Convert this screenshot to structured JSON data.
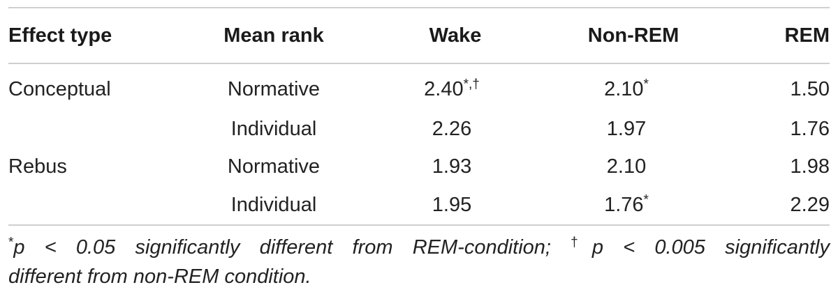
{
  "table": {
    "headers": {
      "effect_type": "Effect type",
      "mean_rank": "Mean rank",
      "wake": "Wake",
      "non_rem": "Non-REM",
      "rem": "REM"
    },
    "rows": [
      {
        "effect_type": "Conceptual",
        "mean_rank": "Normative",
        "wake": "2.40",
        "wake_mark": "*,†",
        "non_rem": "2.10",
        "non_rem_mark": "*",
        "rem": "1.50",
        "rem_mark": ""
      },
      {
        "effect_type": "",
        "mean_rank": "Individual",
        "wake": "2.26",
        "wake_mark": "",
        "non_rem": "1.97",
        "non_rem_mark": "",
        "rem": "1.76",
        "rem_mark": ""
      },
      {
        "effect_type": "Rebus",
        "mean_rank": "Normative",
        "wake": "1.93",
        "wake_mark": "",
        "non_rem": "2.10",
        "non_rem_mark": "",
        "rem": "1.98",
        "rem_mark": ""
      },
      {
        "effect_type": "",
        "mean_rank": "Individual",
        "wake": "1.95",
        "wake_mark": "",
        "non_rem": "1.76",
        "non_rem_mark": "*",
        "rem": "2.29",
        "rem_mark": ""
      }
    ]
  },
  "footnote": {
    "mark1": "*",
    "text1": "p < 0.05 significantly different from REM-condition; ",
    "mark2": "†",
    "text2": "p < 0.005 significantly",
    "text3": "different from non-REM condition."
  }
}
